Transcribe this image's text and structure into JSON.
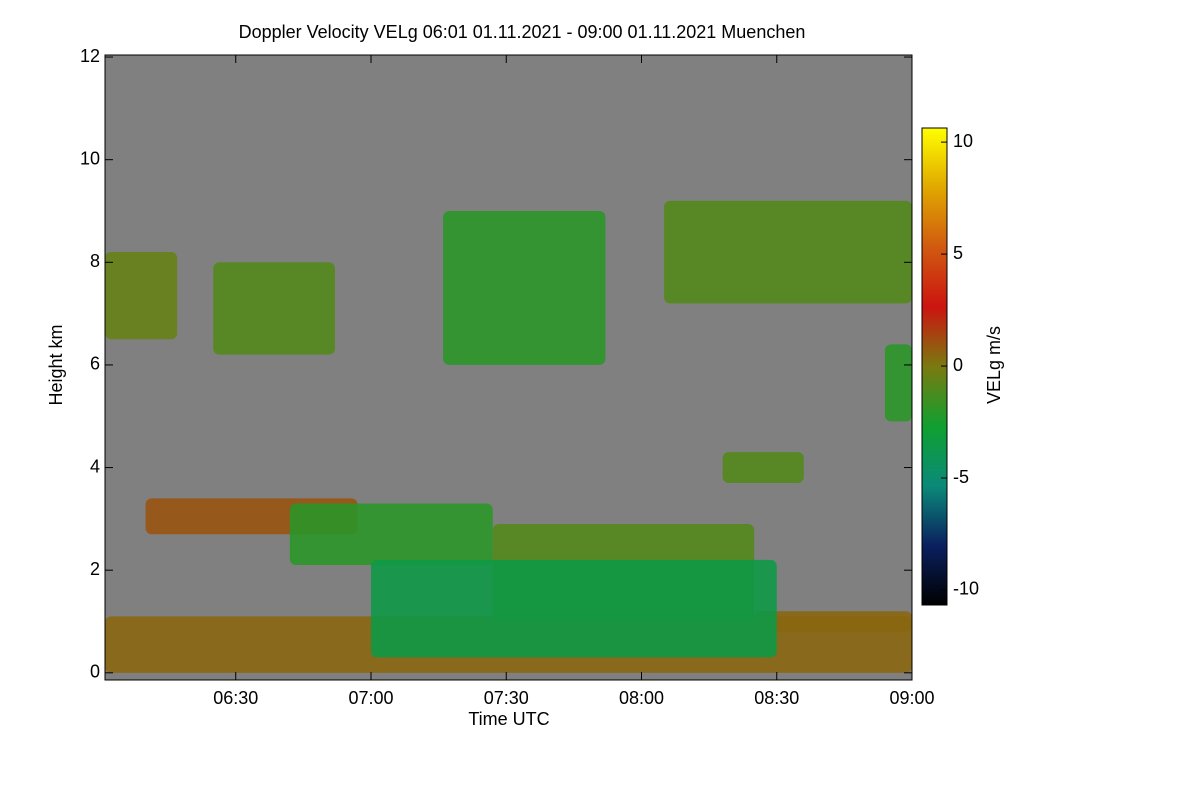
{
  "chart_data": {
    "type": "time-height",
    "title": "Doppler Velocity VELg   06:01 01.11.2021 - 09:00 01.11.2021 Muenchen",
    "xlabel": "Time UTC",
    "ylabel": "Height km",
    "colorbar_label": "VELg m/s",
    "background": "#808080",
    "xlim": [
      "06:01",
      "09:00"
    ],
    "xticks": [
      "06:30",
      "07:00",
      "07:30",
      "08:00",
      "08:30",
      "09:00"
    ],
    "ylim": [
      -0.14,
      12.04
    ],
    "yticks": [
      0,
      2,
      4,
      6,
      8,
      10,
      12
    ],
    "clim": [
      -10.67,
      10.63
    ],
    "cticks": [
      -10,
      -5,
      0,
      5,
      10
    ],
    "colormap": [
      "#000000",
      "#0a2060",
      "#0a8a78",
      "#10a030",
      "#7a7a10",
      "#cc1410",
      "#d05a10",
      "#e0a800",
      "#ffff00"
    ],
    "regions": [
      {
        "start": "06:01",
        "end": "09:00",
        "bottom": 0,
        "top": 1.1,
        "velocity": 0.5
      },
      {
        "start": "08:25",
        "end": "09:00",
        "bottom": 0.8,
        "top": 1.2,
        "velocity": 0.5
      },
      {
        "start": "06:10",
        "end": "06:57",
        "bottom": 2.7,
        "top": 3.4,
        "velocity": 1
      },
      {
        "start": "06:42",
        "end": "07:27",
        "bottom": 2.1,
        "top": 3.3,
        "velocity": -2
      },
      {
        "start": "07:27",
        "end": "08:25",
        "bottom": 1,
        "top": 2.9,
        "velocity": -1
      },
      {
        "start": "07:00",
        "end": "08:30",
        "bottom": 0.3,
        "top": 2.2,
        "velocity": -3.5
      },
      {
        "start": "06:01",
        "end": "06:17",
        "bottom": 6.5,
        "top": 8.2,
        "velocity": -0.5
      },
      {
        "start": "06:25",
        "end": "06:52",
        "bottom": 6.2,
        "top": 8,
        "velocity": -1
      },
      {
        "start": "07:16",
        "end": "07:52",
        "bottom": 6,
        "top": 9,
        "velocity": -2
      },
      {
        "start": "08:05",
        "end": "09:00",
        "bottom": 7.2,
        "top": 9.2,
        "velocity": -1
      },
      {
        "start": "08:54",
        "end": "09:00",
        "bottom": 4.9,
        "top": 6.4,
        "velocity": -2
      },
      {
        "start": "08:18",
        "end": "08:36",
        "bottom": 3.7,
        "top": 4.3,
        "velocity": -1
      }
    ]
  }
}
